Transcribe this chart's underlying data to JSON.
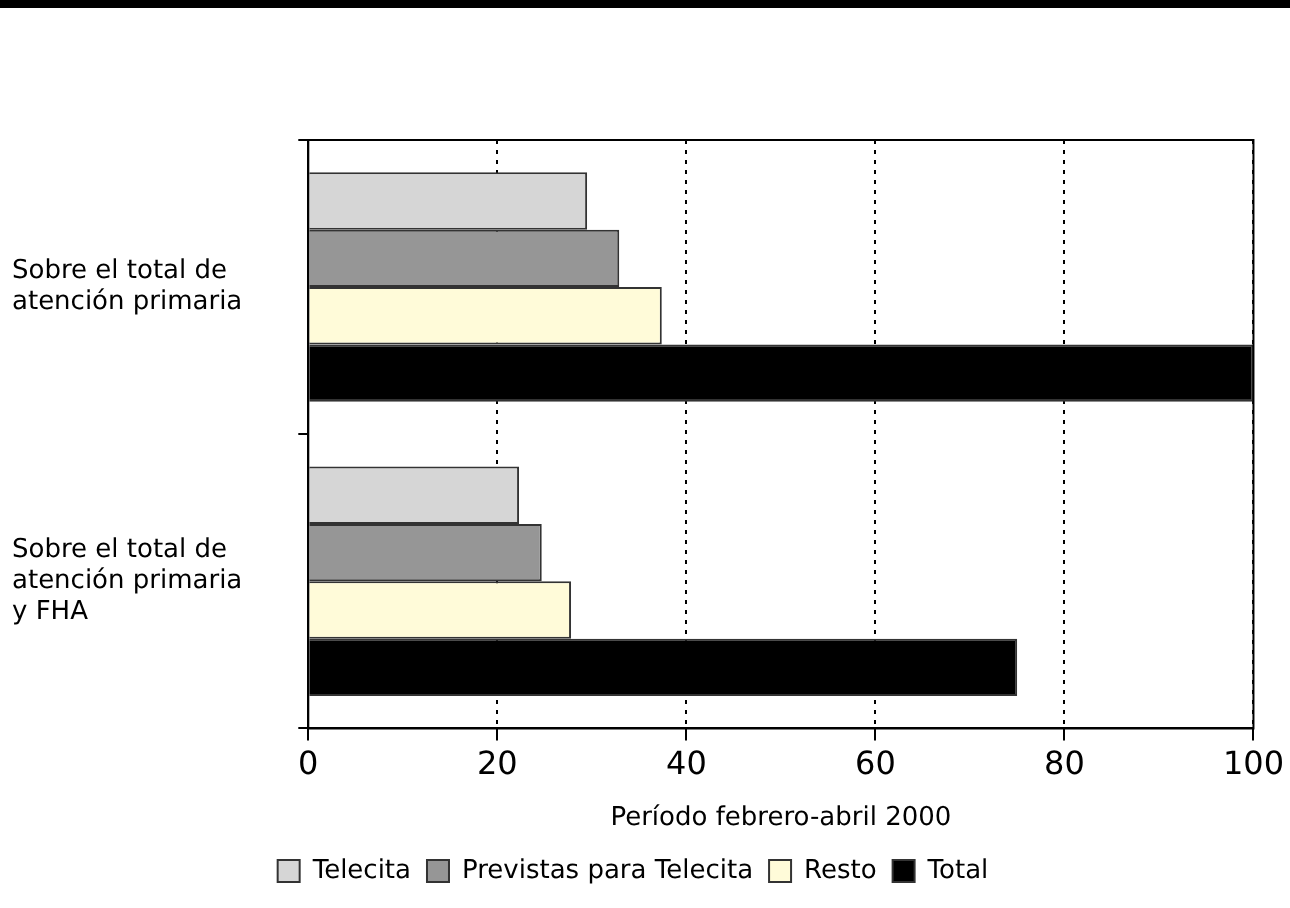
{
  "chart_data": {
    "type": "bar",
    "orientation": "horizontal",
    "xlabel": "Período febrero-abril 2000",
    "categories": [
      "Sobre el total de atención primaria",
      "Sobre el total de atención primaria y FHA"
    ],
    "series": [
      {
        "name": "Telecita",
        "color": "#d6d6d6",
        "values": [
          29.5,
          22.3
        ]
      },
      {
        "name": "Previstas para Telecita",
        "color": "#969696",
        "values": [
          32.9,
          24.7
        ]
      },
      {
        "name": "Resto",
        "color": "#fffbd9",
        "values": [
          37.4,
          27.8
        ]
      },
      {
        "name": "Total",
        "color": "#000000",
        "values": [
          100,
          75
        ]
      }
    ],
    "xlim": [
      0,
      100
    ],
    "xticks": [
      0,
      20,
      40,
      60,
      80,
      100
    ],
    "grid": "x",
    "legend": "bottom"
  }
}
